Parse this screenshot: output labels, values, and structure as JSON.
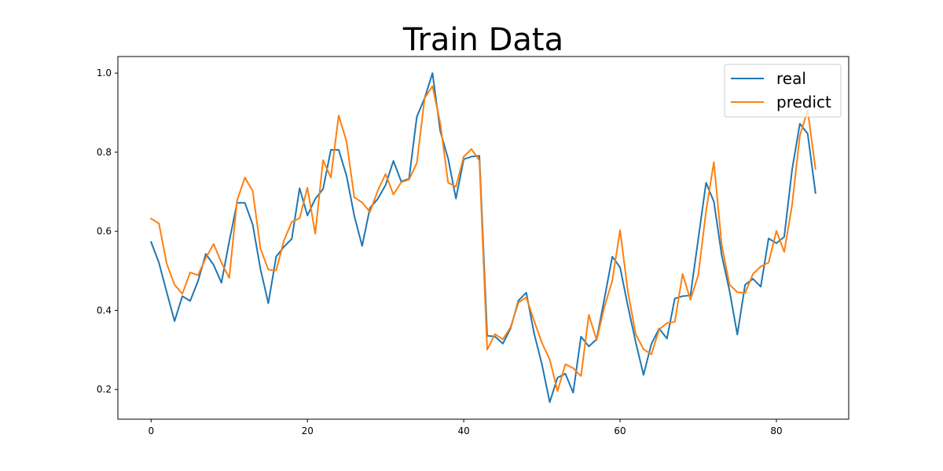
{
  "chart_data": {
    "type": "line",
    "title": "Train Data",
    "xlabel": "",
    "ylabel": "",
    "xlim": [
      -4.25,
      89.25
    ],
    "ylim": [
      0.125,
      1.042
    ],
    "x_ticks": [
      0,
      20,
      40,
      60,
      80
    ],
    "y_ticks": [
      0.2,
      0.4,
      0.6,
      0.8,
      1.0
    ],
    "grid": false,
    "legend_position": "top-right",
    "series": [
      {
        "name": "real",
        "color": "#1f77b4",
        "values": [
          0.573,
          0.521,
          0.446,
          0.373,
          0.436,
          0.424,
          0.474,
          0.543,
          0.515,
          0.47,
          0.575,
          0.672,
          0.672,
          0.617,
          0.504,
          0.418,
          0.536,
          0.561,
          0.581,
          0.709,
          0.64,
          0.682,
          0.707,
          0.806,
          0.806,
          0.741,
          0.639,
          0.563,
          0.659,
          0.682,
          0.717,
          0.778,
          0.726,
          0.733,
          0.89,
          0.937,
          1.0,
          0.853,
          0.784,
          0.683,
          0.782,
          0.789,
          0.791,
          0.336,
          0.334,
          0.316,
          0.355,
          0.425,
          0.445,
          0.342,
          0.264,
          0.168,
          0.23,
          0.24,
          0.192,
          0.334,
          0.309,
          0.327,
          0.43,
          0.536,
          0.509,
          0.411,
          0.32,
          0.237,
          0.315,
          0.354,
          0.329,
          0.43,
          0.436,
          0.438,
          0.58,
          0.723,
          0.675,
          0.54,
          0.45,
          0.339,
          0.465,
          0.48,
          0.46,
          0.582,
          0.57,
          0.586,
          0.755,
          0.872,
          0.847,
          0.697
        ]
      },
      {
        "name": "predict",
        "color": "#ff7f0e",
        "values": [
          0.632,
          0.62,
          0.518,
          0.465,
          0.442,
          0.496,
          0.489,
          0.533,
          0.568,
          0.521,
          0.482,
          0.678,
          0.736,
          0.702,
          0.556,
          0.503,
          0.501,
          0.577,
          0.624,
          0.633,
          0.71,
          0.594,
          0.78,
          0.736,
          0.893,
          0.828,
          0.686,
          0.673,
          0.649,
          0.703,
          0.745,
          0.693,
          0.724,
          0.731,
          0.773,
          0.937,
          0.967,
          0.873,
          0.723,
          0.713,
          0.789,
          0.808,
          0.779,
          0.301,
          0.34,
          0.327,
          0.358,
          0.42,
          0.433,
          0.374,
          0.318,
          0.276,
          0.196,
          0.264,
          0.254,
          0.234,
          0.389,
          0.325,
          0.409,
          0.475,
          0.603,
          0.448,
          0.34,
          0.302,
          0.289,
          0.352,
          0.368,
          0.371,
          0.492,
          0.427,
          0.489,
          0.651,
          0.775,
          0.566,
          0.465,
          0.446,
          0.444,
          0.492,
          0.511,
          0.521,
          0.601,
          0.548,
          0.666,
          0.842,
          0.906,
          0.758
        ]
      }
    ]
  }
}
